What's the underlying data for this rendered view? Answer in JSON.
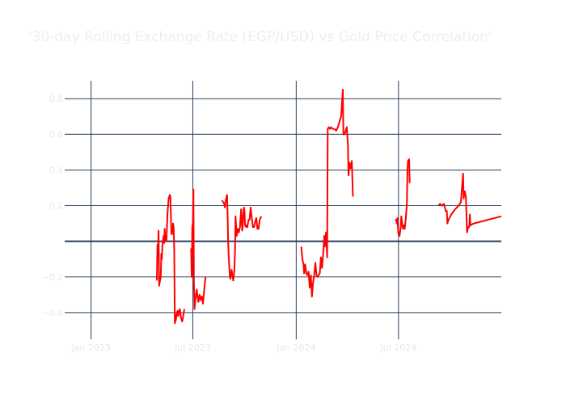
{
  "chart_data": {
    "type": "line",
    "title": "'30-day Rolling Exchange Rate (EGP/USD) vs Gold Price Correlation'",
    "xlabel": "",
    "ylabel": "",
    "x_ticks": [
      "Jan 2023",
      "Jul 2023",
      "Jan 2024",
      "Jul 2024"
    ],
    "y_ticks": [
      {
        "value": -0.4,
        "label": "−0.4"
      },
      {
        "value": -0.2,
        "label": "−0.2"
      },
      {
        "value": 0.2,
        "label": "0.2"
      },
      {
        "value": 0.4,
        "label": "0.4"
      },
      {
        "value": 0.6,
        "label": "0.6"
      },
      {
        "value": 0.8,
        "label": "0.8"
      }
    ],
    "xlim": [
      "2022-11-15",
      "2024-12-31"
    ],
    "ylim": [
      -0.55,
      0.9
    ],
    "grid": true,
    "line_color": "#ff0000",
    "grid_color": "#2a3f5f",
    "series": [
      {
        "segments": [
          [
            [
              "2023-04-28",
              -0.22
            ],
            [
              "2023-04-29",
              -0.02
            ],
            [
              "2023-04-30",
              -0.05
            ],
            [
              "2023-05-01",
              0.06
            ],
            [
              "2023-05-02",
              -0.25
            ],
            [
              "2023-05-03",
              -0.23
            ],
            [
              "2023-05-05",
              -0.2
            ],
            [
              "2023-05-06",
              -0.07
            ],
            [
              "2023-05-07",
              -0.1
            ],
            [
              "2023-05-08",
              -0.02
            ],
            [
              "2023-05-10",
              0.03
            ],
            [
              "2023-05-11",
              -0.01
            ],
            [
              "2023-05-12",
              0.07
            ],
            [
              "2023-05-13",
              0.0
            ],
            [
              "2023-05-15",
              0.0
            ],
            [
              "2023-05-17",
              0.16
            ],
            [
              "2023-05-19",
              0.24
            ],
            [
              "2023-05-21",
              0.26
            ],
            [
              "2023-05-22",
              0.25
            ],
            [
              "2023-05-24",
              0.04
            ],
            [
              "2023-05-25",
              0.04
            ],
            [
              "2023-05-27",
              0.1
            ],
            [
              "2023-05-28",
              0.08
            ],
            [
              "2023-05-29",
              -0.05
            ],
            [
              "2023-05-30",
              -0.46
            ],
            [
              "2023-06-01",
              -0.44
            ],
            [
              "2023-06-02",
              -0.41
            ],
            [
              "2023-06-04",
              -0.39
            ],
            [
              "2023-06-05",
              -0.42
            ],
            [
              "2023-06-07",
              -0.39
            ],
            [
              "2023-06-08",
              -0.38
            ],
            [
              "2023-06-10",
              -0.43
            ],
            [
              "2023-06-12",
              -0.45
            ],
            [
              "2023-06-14",
              -0.42
            ],
            [
              "2023-06-16",
              -0.38
            ]
          ],
          [
            [
              "2023-06-28",
              -0.04
            ],
            [
              "2023-06-29",
              -0.2
            ],
            [
              "2023-06-30",
              0.08
            ],
            [
              "2023-07-01",
              0.1
            ],
            [
              "2023-07-02",
              0.29
            ],
            [
              "2023-07-03",
              -0.22
            ],
            [
              "2023-07-04",
              -0.38
            ],
            [
              "2023-07-06",
              -0.32
            ],
            [
              "2023-07-08",
              -0.27
            ],
            [
              "2023-07-09",
              -0.3
            ],
            [
              "2023-07-11",
              -0.34
            ],
            [
              "2023-07-13",
              -0.3
            ],
            [
              "2023-07-15",
              -0.33
            ],
            [
              "2023-07-17",
              -0.31
            ],
            [
              "2023-07-19",
              -0.35
            ],
            [
              "2023-07-21",
              -0.28
            ],
            [
              "2023-07-23",
              -0.22
            ],
            [
              "2023-07-24",
              -0.2
            ]
          ],
          [
            [
              "2023-08-22",
              0.23
            ],
            [
              "2023-08-24",
              0.22
            ],
            [
              "2023-08-26",
              0.21
            ],
            [
              "2023-08-27",
              0.19
            ],
            [
              "2023-08-28",
              0.22
            ],
            [
              "2023-08-30",
              0.25
            ],
            [
              "2023-08-31",
              0.26
            ],
            [
              "2023-09-01",
              0.15
            ],
            [
              "2023-09-02",
              -0.01
            ],
            [
              "2023-09-03",
              -0.09
            ],
            [
              "2023-09-05",
              -0.2
            ],
            [
              "2023-09-06",
              -0.21
            ],
            [
              "2023-09-08",
              -0.16
            ],
            [
              "2023-09-10",
              -0.2
            ],
            [
              "2023-09-11",
              -0.22
            ],
            [
              "2023-09-13",
              -0.16
            ],
            [
              "2023-09-14",
              -0.06
            ],
            [
              "2023-09-15",
              0.14
            ],
            [
              "2023-09-17",
              0.03
            ],
            [
              "2023-09-19",
              0.07
            ],
            [
              "2023-09-21",
              0.05
            ],
            [
              "2023-09-23",
              0.08
            ],
            [
              "2023-09-25",
              0.18
            ],
            [
              "2023-09-27",
              0.06
            ],
            [
              "2023-09-28",
              0.09
            ],
            [
              "2023-09-29",
              0.16
            ],
            [
              "2023-09-30",
              0.19
            ],
            [
              "2023-10-01",
              0.17
            ],
            [
              "2023-10-02",
              0.09
            ],
            [
              "2023-10-04",
              0.08
            ],
            [
              "2023-10-05",
              0.09
            ],
            [
              "2023-10-06",
              0.08
            ],
            [
              "2023-10-08",
              0.12
            ],
            [
              "2023-10-10",
              0.12
            ],
            [
              "2023-10-12",
              0.19
            ],
            [
              "2023-10-14",
              0.13
            ],
            [
              "2023-10-16",
              0.08
            ],
            [
              "2023-10-18",
              0.08
            ],
            [
              "2023-10-20",
              0.11
            ],
            [
              "2023-10-22",
              0.13
            ],
            [
              "2023-10-24",
              0.07
            ],
            [
              "2023-10-26",
              0.07
            ],
            [
              "2023-10-28",
              0.12
            ],
            [
              "2023-10-31",
              0.14
            ]
          ],
          [
            [
              "2024-01-10",
              -0.03
            ],
            [
              "2024-01-12",
              -0.1
            ],
            [
              "2024-01-14",
              -0.13
            ],
            [
              "2024-01-15",
              -0.18
            ],
            [
              "2024-01-17",
              -0.13
            ],
            [
              "2024-01-19",
              -0.18
            ],
            [
              "2024-01-21",
              -0.19
            ],
            [
              "2024-01-23",
              -0.17
            ],
            [
              "2024-01-25",
              -0.26
            ],
            [
              "2024-01-27",
              -0.19
            ],
            [
              "2024-01-29",
              -0.31
            ],
            [
              "2024-01-31",
              -0.23
            ],
            [
              "2024-02-02",
              -0.19
            ],
            [
              "2024-02-04",
              -0.12
            ],
            [
              "2024-02-06",
              -0.19
            ],
            [
              "2024-02-08",
              -0.2
            ],
            [
              "2024-02-10",
              -0.19
            ],
            [
              "2024-02-12",
              -0.18
            ],
            [
              "2024-02-14",
              -0.09
            ],
            [
              "2024-02-16",
              -0.15
            ],
            [
              "2024-02-18",
              -0.07
            ],
            [
              "2024-02-20",
              0.03
            ],
            [
              "2024-02-21",
              -0.03
            ],
            [
              "2024-02-23",
              0.05
            ],
            [
              "2024-02-25",
              -0.09
            ],
            [
              "2024-02-26",
              0.63
            ],
            [
              "2024-02-28",
              0.64
            ],
            [
              "2024-03-01",
              0.63
            ],
            [
              "2024-03-03",
              0.64
            ],
            [
              "2024-03-06",
              0.63
            ],
            [
              "2024-03-09",
              0.63
            ],
            [
              "2024-03-12",
              0.62
            ],
            [
              "2024-03-15",
              0.64
            ],
            [
              "2024-03-18",
              0.67
            ],
            [
              "2024-03-21",
              0.7
            ],
            [
              "2024-03-23",
              0.8
            ],
            [
              "2024-03-24",
              0.85
            ],
            [
              "2024-03-25",
              0.6
            ],
            [
              "2024-03-27",
              0.6
            ],
            [
              "2024-03-29",
              0.62
            ],
            [
              "2024-03-31",
              0.64
            ],
            [
              "2024-04-02",
              0.54
            ],
            [
              "2024-04-03",
              0.37
            ],
            [
              "2024-04-05",
              0.44
            ],
            [
              "2024-04-07",
              0.41
            ],
            [
              "2024-04-09",
              0.45
            ],
            [
              "2024-04-11",
              0.25
            ]
          ],
          [
            [
              "2024-06-25",
              0.12
            ],
            [
              "2024-06-27",
              0.12
            ],
            [
              "2024-06-28",
              0.1
            ],
            [
              "2024-06-29",
              0.13
            ],
            [
              "2024-06-30",
              0.08
            ],
            [
              "2024-07-01",
              0.04
            ],
            [
              "2024-07-02",
              0.05
            ],
            [
              "2024-07-03",
              0.03
            ],
            [
              "2024-07-05",
              0.08
            ],
            [
              "2024-07-06",
              0.14
            ],
            [
              "2024-07-08",
              0.09
            ],
            [
              "2024-07-09",
              0.07
            ],
            [
              "2024-07-11",
              0.09
            ],
            [
              "2024-07-12",
              0.07
            ],
            [
              "2024-07-14",
              0.13
            ],
            [
              "2024-07-16",
              0.21
            ],
            [
              "2024-07-17",
              0.4
            ],
            [
              "2024-07-18",
              0.45
            ],
            [
              "2024-07-20",
              0.46
            ],
            [
              "2024-07-21",
              0.33
            ],
            [
              "2024-07-22",
              0.33
            ]
          ],
          [
            [
              "2024-09-10",
              0.2
            ],
            [
              "2024-09-13",
              0.21
            ],
            [
              "2024-09-17",
              0.2
            ],
            [
              "2024-09-20",
              0.21
            ],
            [
              "2024-09-23",
              0.17
            ],
            [
              "2024-09-25",
              0.17
            ],
            [
              "2024-09-26",
              0.1
            ],
            [
              "2024-09-28",
              0.12
            ],
            [
              "2024-10-03",
              0.15
            ],
            [
              "2024-10-10",
              0.18
            ],
            [
              "2024-10-16",
              0.2
            ],
            [
              "2024-10-20",
              0.22
            ],
            [
              "2024-10-23",
              0.34
            ],
            [
              "2024-10-24",
              0.38
            ],
            [
              "2024-10-25",
              0.24
            ],
            [
              "2024-10-27",
              0.28
            ],
            [
              "2024-10-29",
              0.25
            ],
            [
              "2024-10-31",
              0.05
            ],
            [
              "2024-11-02",
              0.08
            ],
            [
              "2024-11-04",
              0.08
            ],
            [
              "2024-11-05",
              0.15
            ],
            [
              "2024-11-06",
              0.09
            ],
            [
              "2024-11-12",
              0.1
            ],
            [
              "2024-12-31",
              0.14
            ]
          ]
        ]
      }
    ]
  }
}
